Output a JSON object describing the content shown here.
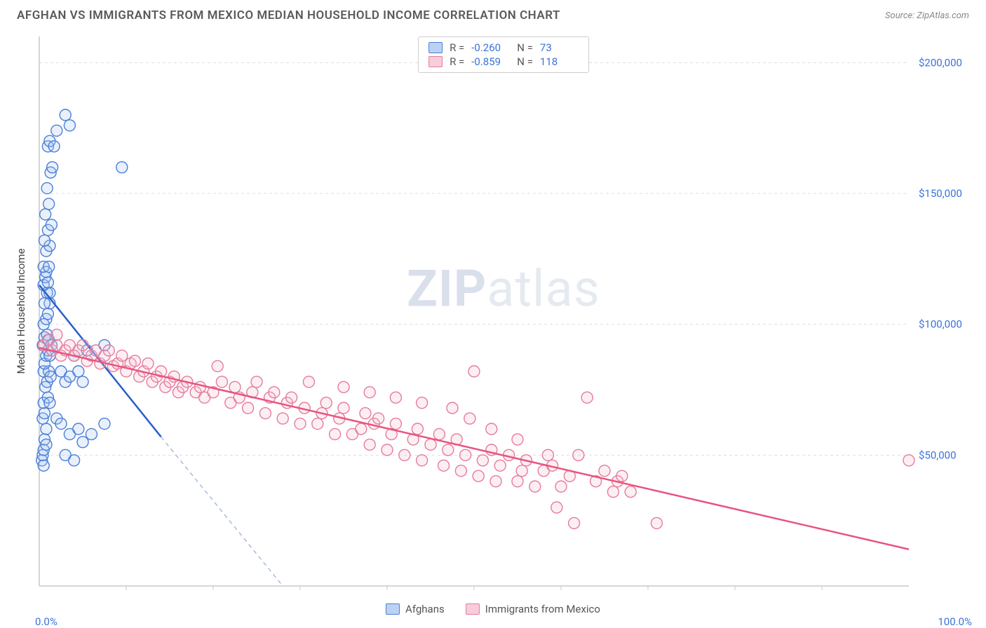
{
  "title": "AFGHAN VS IMMIGRANTS FROM MEXICO MEDIAN HOUSEHOLD INCOME CORRELATION CHART",
  "source": "Source: ZipAtlas.com",
  "watermark": {
    "bold": "ZIP",
    "light": "atlas"
  },
  "y_label": "Median Household Income",
  "chart": {
    "type": "scatter",
    "xlim": [
      0,
      100
    ],
    "ylim": [
      0,
      210000
    ],
    "x_ticks_minor": [
      10,
      20,
      30,
      40,
      50,
      60,
      70,
      80,
      90
    ],
    "x_tick_labels": {
      "min": "0.0%",
      "max": "100.0%"
    },
    "y_ticks": [
      50000,
      100000,
      150000,
      200000
    ],
    "y_tick_labels": [
      "$50,000",
      "$100,000",
      "$150,000",
      "$200,000"
    ],
    "y_tick_color": "#3b72d8",
    "x_tick_color": "#3b72d8",
    "grid_color": "#dddddd",
    "axis_color": "#c8c8c8",
    "background_color": "#ffffff",
    "marker_radius": 8,
    "marker_stroke_width": 1.4,
    "marker_fill_opacity": 0.25,
    "series": [
      {
        "name": "Afghans",
        "color_stroke": "#4a7fd8",
        "color_fill": "#a9c4ee",
        "swatch_fill": "#bcd2f2",
        "swatch_border": "#4a7fd8",
        "trend_line_color": "#2a5fc8",
        "trend_dash_color": "#a0b8d8",
        "trend_solid": {
          "x1": 0,
          "y1": 115000,
          "x2": 14,
          "y2": 57000
        },
        "trend_dash_end": {
          "x": 28,
          "y": 0
        },
        "correlation": {
          "R": "-0.260",
          "N": "73"
        },
        "points": [
          [
            0.3,
            48000
          ],
          [
            0.4,
            50000
          ],
          [
            0.5,
            52000
          ],
          [
            0.5,
            46000
          ],
          [
            0.6,
            56000
          ],
          [
            0.8,
            54000
          ],
          [
            0.8,
            60000
          ],
          [
            0.4,
            64000
          ],
          [
            0.6,
            66000
          ],
          [
            0.5,
            70000
          ],
          [
            1.0,
            72000
          ],
          [
            1.2,
            70000
          ],
          [
            0.7,
            76000
          ],
          [
            0.9,
            78000
          ],
          [
            0.5,
            82000
          ],
          [
            1.1,
            82000
          ],
          [
            1.3,
            80000
          ],
          [
            0.6,
            85000
          ],
          [
            0.8,
            88000
          ],
          [
            1.0,
            90000
          ],
          [
            1.2,
            88000
          ],
          [
            0.4,
            92000
          ],
          [
            0.6,
            95000
          ],
          [
            0.9,
            96000
          ],
          [
            1.1,
            94000
          ],
          [
            1.4,
            92000
          ],
          [
            0.5,
            100000
          ],
          [
            0.8,
            102000
          ],
          [
            1.0,
            104000
          ],
          [
            1.2,
            108000
          ],
          [
            0.6,
            108000
          ],
          [
            0.9,
            112000
          ],
          [
            1.2,
            112000
          ],
          [
            0.5,
            115000
          ],
          [
            0.7,
            118000
          ],
          [
            1.0,
            116000
          ],
          [
            0.8,
            120000
          ],
          [
            0.5,
            122000
          ],
          [
            1.1,
            122000
          ],
          [
            0.8,
            128000
          ],
          [
            1.2,
            130000
          ],
          [
            0.6,
            132000
          ],
          [
            1.0,
            136000
          ],
          [
            1.4,
            138000
          ],
          [
            0.7,
            142000
          ],
          [
            1.1,
            146000
          ],
          [
            0.9,
            152000
          ],
          [
            1.3,
            158000
          ],
          [
            1.5,
            160000
          ],
          [
            1.0,
            168000
          ],
          [
            1.2,
            170000
          ],
          [
            1.7,
            168000
          ],
          [
            2.0,
            174000
          ],
          [
            3.5,
            176000
          ],
          [
            3.0,
            180000
          ],
          [
            9.5,
            160000
          ],
          [
            2.5,
            82000
          ],
          [
            3.0,
            78000
          ],
          [
            3.5,
            80000
          ],
          [
            4.0,
            88000
          ],
          [
            4.5,
            82000
          ],
          [
            5.0,
            78000
          ],
          [
            5.5,
            90000
          ],
          [
            7.5,
            92000
          ],
          [
            2.0,
            64000
          ],
          [
            2.5,
            62000
          ],
          [
            3.5,
            58000
          ],
          [
            4.5,
            60000
          ],
          [
            5.0,
            55000
          ],
          [
            6.0,
            58000
          ],
          [
            7.5,
            62000
          ],
          [
            3.0,
            50000
          ],
          [
            4.0,
            48000
          ]
        ]
      },
      {
        "name": "Immigrants from Mexico",
        "color_stroke": "#e67b9c",
        "color_fill": "#f5c0d0",
        "swatch_fill": "#f7cdd9",
        "swatch_border": "#e67b9c",
        "trend_line_color": "#e8557f",
        "trend_solid": {
          "x1": 0,
          "y1": 91000,
          "x2": 100,
          "y2": 14000
        },
        "correlation": {
          "R": "-0.859",
          "N": "118"
        },
        "points": [
          [
            0.5,
            92000
          ],
          [
            1.0,
            94000
          ],
          [
            1.5,
            90000
          ],
          [
            2.0,
            92000
          ],
          [
            2.5,
            88000
          ],
          [
            3.0,
            90000
          ],
          [
            3.5,
            92000
          ],
          [
            4.0,
            88000
          ],
          [
            4.5,
            90000
          ],
          [
            5.0,
            92000
          ],
          [
            5.5,
            86000
          ],
          [
            6.0,
            88000
          ],
          [
            6.5,
            90000
          ],
          [
            7.0,
            85000
          ],
          [
            7.5,
            88000
          ],
          [
            8.0,
            90000
          ],
          [
            8.5,
            84000
          ],
          [
            9.0,
            85000
          ],
          [
            9.5,
            88000
          ],
          [
            10.0,
            82000
          ],
          [
            10.5,
            85000
          ],
          [
            11.0,
            86000
          ],
          [
            11.5,
            80000
          ],
          [
            12.0,
            82000
          ],
          [
            12.5,
            85000
          ],
          [
            13.0,
            78000
          ],
          [
            13.5,
            80000
          ],
          [
            14.0,
            82000
          ],
          [
            14.5,
            76000
          ],
          [
            15.0,
            78000
          ],
          [
            15.5,
            80000
          ],
          [
            16.0,
            74000
          ],
          [
            16.5,
            76000
          ],
          [
            17.0,
            78000
          ],
          [
            18.0,
            74000
          ],
          [
            18.5,
            76000
          ],
          [
            19.0,
            72000
          ],
          [
            20.0,
            74000
          ],
          [
            20.5,
            84000
          ],
          [
            21.0,
            78000
          ],
          [
            22.0,
            70000
          ],
          [
            22.5,
            76000
          ],
          [
            23.0,
            72000
          ],
          [
            24.0,
            68000
          ],
          [
            24.5,
            74000
          ],
          [
            25.0,
            78000
          ],
          [
            26.0,
            66000
          ],
          [
            26.5,
            72000
          ],
          [
            27.0,
            74000
          ],
          [
            28.0,
            64000
          ],
          [
            28.5,
            70000
          ],
          [
            29.0,
            72000
          ],
          [
            30.0,
            62000
          ],
          [
            30.5,
            68000
          ],
          [
            31.0,
            78000
          ],
          [
            32.0,
            62000
          ],
          [
            32.5,
            66000
          ],
          [
            33.0,
            70000
          ],
          [
            34.0,
            58000
          ],
          [
            34.5,
            64000
          ],
          [
            35.0,
            68000
          ],
          [
            36.0,
            58000
          ],
          [
            37.0,
            60000
          ],
          [
            37.5,
            66000
          ],
          [
            38.0,
            54000
          ],
          [
            38.5,
            62000
          ],
          [
            39.0,
            64000
          ],
          [
            40.0,
            52000
          ],
          [
            40.5,
            58000
          ],
          [
            41.0,
            62000
          ],
          [
            42.0,
            50000
          ],
          [
            43.0,
            56000
          ],
          [
            43.5,
            60000
          ],
          [
            44.0,
            48000
          ],
          [
            45.0,
            54000
          ],
          [
            46.0,
            58000
          ],
          [
            46.5,
            46000
          ],
          [
            47.0,
            52000
          ],
          [
            48.0,
            56000
          ],
          [
            48.5,
            44000
          ],
          [
            49.0,
            50000
          ],
          [
            50.0,
            82000
          ],
          [
            50.5,
            42000
          ],
          [
            51.0,
            48000
          ],
          [
            52.0,
            52000
          ],
          [
            52.5,
            40000
          ],
          [
            53.0,
            46000
          ],
          [
            54.0,
            50000
          ],
          [
            55.0,
            40000
          ],
          [
            55.5,
            44000
          ],
          [
            56.0,
            48000
          ],
          [
            57.0,
            38000
          ],
          [
            58.0,
            44000
          ],
          [
            59.0,
            46000
          ],
          [
            60.0,
            38000
          ],
          [
            61.0,
            42000
          ],
          [
            62.0,
            50000
          ],
          [
            63.0,
            72000
          ],
          [
            64.0,
            40000
          ],
          [
            65.0,
            44000
          ],
          [
            66.0,
            36000
          ],
          [
            66.5,
            40000
          ],
          [
            67.0,
            42000
          ],
          [
            68.0,
            36000
          ],
          [
            71.0,
            24000
          ],
          [
            61.5,
            24000
          ],
          [
            59.5,
            30000
          ],
          [
            58.5,
            50000
          ],
          [
            55.0,
            56000
          ],
          [
            52.0,
            60000
          ],
          [
            49.5,
            64000
          ],
          [
            47.5,
            68000
          ],
          [
            44.0,
            70000
          ],
          [
            41.0,
            72000
          ],
          [
            38.0,
            74000
          ],
          [
            35.0,
            76000
          ],
          [
            2.0,
            96000
          ],
          [
            100.0,
            48000
          ]
        ]
      }
    ]
  },
  "legend_labels": {
    "r_prefix": "R =",
    "n_prefix": "N ="
  }
}
